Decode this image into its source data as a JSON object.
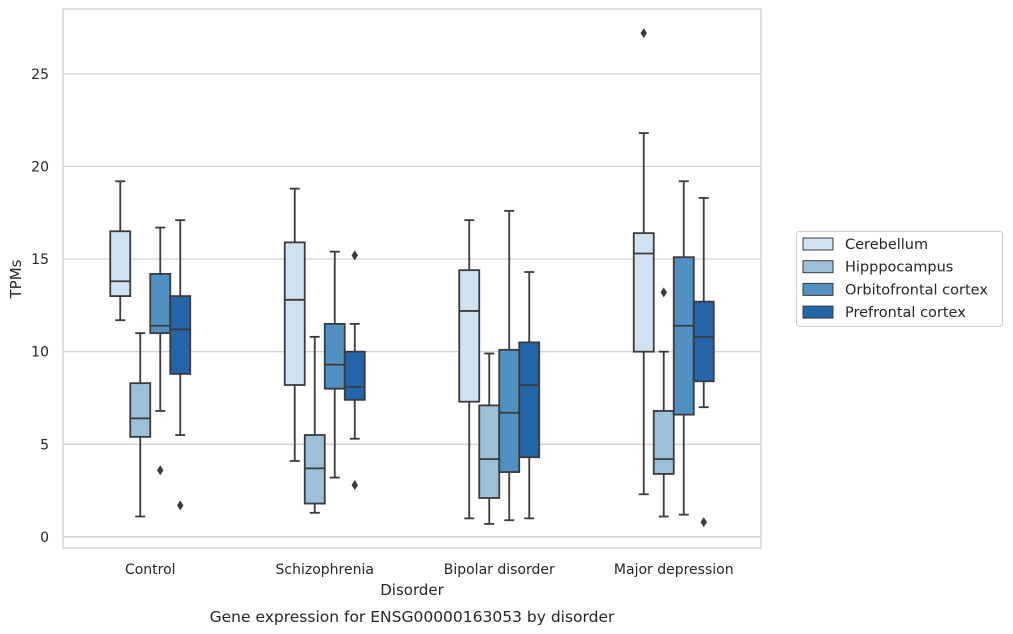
{
  "chart_data": {
    "type": "box",
    "title": "",
    "caption": "Gene expression for ENSG00000163053 by disorder",
    "xlabel": "Disorder",
    "ylabel": "TPMs",
    "ylim": [
      -0.6,
      28.5
    ],
    "yticks": [
      0,
      5,
      10,
      15,
      20,
      25
    ],
    "grid": "horizontal",
    "legend_position": "right",
    "categories": [
      "Control",
      "Schizophrenia",
      "Bipolar disorder",
      "Major depression"
    ],
    "series": [
      {
        "name": "Cerebellum",
        "color": "#d0e1f2",
        "boxes": [
          {
            "whisker_low": 11.7,
            "q1": 13.0,
            "median": 13.8,
            "q3": 16.5,
            "whisker_high": 19.2,
            "outliers": []
          },
          {
            "whisker_low": 4.1,
            "q1": 8.2,
            "median": 12.8,
            "q3": 15.9,
            "whisker_high": 18.8,
            "outliers": []
          },
          {
            "whisker_low": 1.0,
            "q1": 7.3,
            "median": 12.2,
            "q3": 14.4,
            "whisker_high": 17.1,
            "outliers": []
          },
          {
            "whisker_low": 2.3,
            "q1": 10.0,
            "median": 15.3,
            "q3": 16.4,
            "whisker_high": 21.8,
            "outliers": [
              27.2
            ]
          }
        ]
      },
      {
        "name": "Hipppocampus",
        "color": "#9ac1d9",
        "boxes": [
          {
            "whisker_low": 1.1,
            "q1": 5.4,
            "median": 6.4,
            "q3": 8.3,
            "whisker_high": 11.0,
            "outliers": []
          },
          {
            "whisker_low": 1.3,
            "q1": 1.8,
            "median": 3.7,
            "q3": 5.5,
            "whisker_high": 10.8,
            "outliers": []
          },
          {
            "whisker_low": 0.7,
            "q1": 2.1,
            "median": 4.2,
            "q3": 7.1,
            "whisker_high": 9.9,
            "outliers": []
          },
          {
            "whisker_low": 1.1,
            "q1": 3.4,
            "median": 4.2,
            "q3": 6.8,
            "whisker_high": 10.0,
            "outliers": [
              13.2
            ]
          }
        ]
      },
      {
        "name": "Orbitofrontal cortex",
        "color": "#5191c1",
        "boxes": [
          {
            "whisker_low": 6.8,
            "q1": 11.0,
            "median": 11.4,
            "q3": 14.2,
            "whisker_high": 16.7,
            "outliers": [
              3.6
            ]
          },
          {
            "whisker_low": 3.2,
            "q1": 8.0,
            "median": 9.3,
            "q3": 11.5,
            "whisker_high": 15.4,
            "outliers": []
          },
          {
            "whisker_low": 0.9,
            "q1": 3.5,
            "median": 6.7,
            "q3": 10.1,
            "whisker_high": 17.6,
            "outliers": []
          },
          {
            "whisker_low": 1.2,
            "q1": 6.6,
            "median": 11.4,
            "q3": 15.1,
            "whisker_high": 19.2,
            "outliers": []
          }
        ]
      },
      {
        "name": "Prefrontal cortex",
        "color": "#2464a8",
        "boxes": [
          {
            "whisker_low": 5.5,
            "q1": 8.8,
            "median": 11.2,
            "q3": 13.0,
            "whisker_high": 17.1,
            "outliers": [
              1.7
            ]
          },
          {
            "whisker_low": 5.3,
            "q1": 7.4,
            "median": 8.1,
            "q3": 10.0,
            "whisker_high": 11.5,
            "outliers": [
              2.8,
              15.2
            ]
          },
          {
            "whisker_low": 1.0,
            "q1": 4.3,
            "median": 8.2,
            "q3": 10.5,
            "whisker_high": 14.3,
            "outliers": []
          },
          {
            "whisker_low": 7.0,
            "q1": 8.4,
            "median": 10.8,
            "q3": 12.7,
            "whisker_high": 18.3,
            "outliers": [
              0.8
            ]
          }
        ]
      }
    ]
  }
}
